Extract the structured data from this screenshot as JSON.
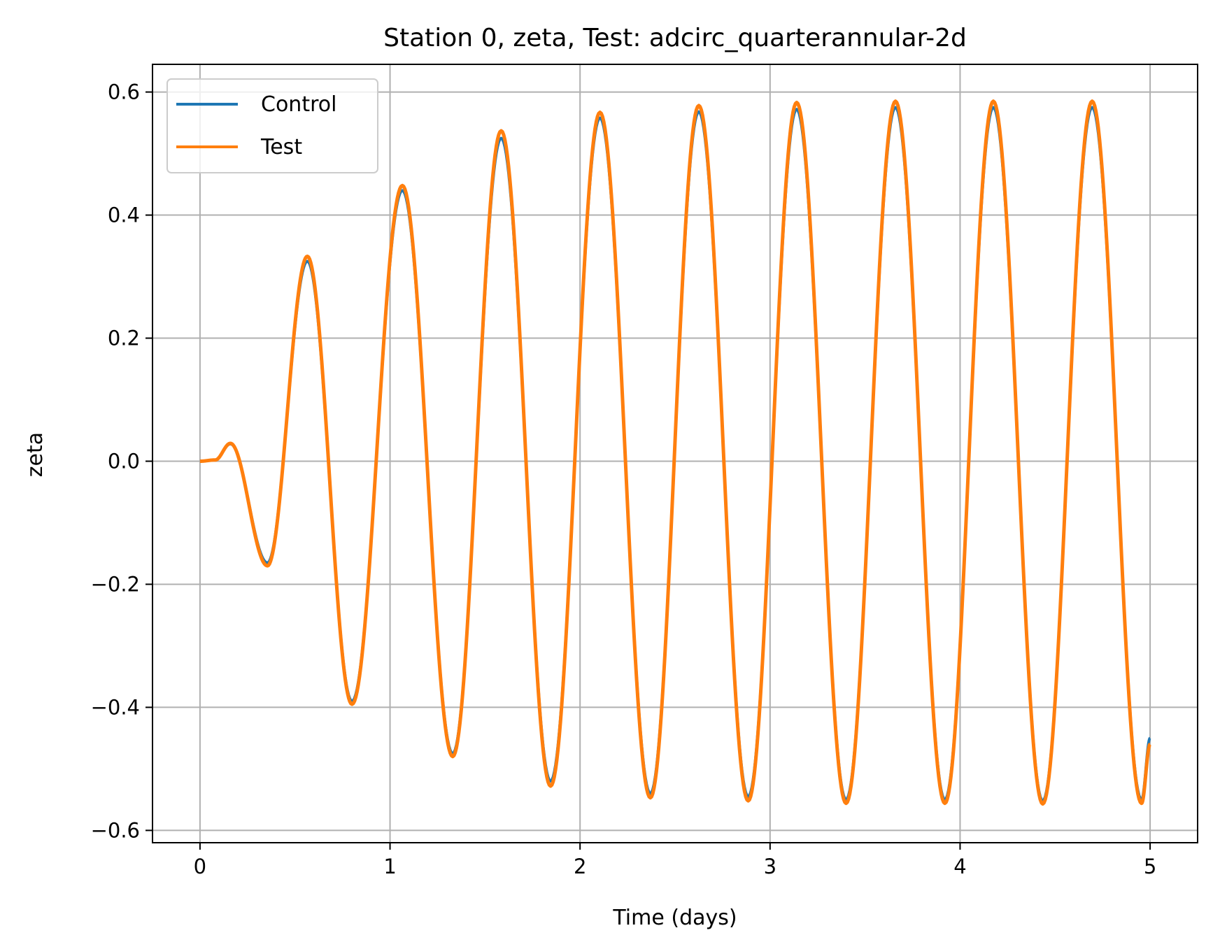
{
  "chart_data": {
    "type": "line",
    "title": "Station 0, zeta, Test: adcirc_quarterannular-2d",
    "xlabel": "Time (days)",
    "ylabel": "zeta",
    "xlim": [
      -0.25,
      5.25
    ],
    "ylim": [
      -0.62,
      0.645
    ],
    "xticks": [
      0,
      1,
      2,
      3,
      4,
      5
    ],
    "xtick_labels": [
      "0",
      "1",
      "2",
      "3",
      "4",
      "5"
    ],
    "yticks": [
      -0.6,
      -0.4,
      -0.2,
      0.0,
      0.2,
      0.4,
      0.6
    ],
    "ytick_labels": [
      "−0.6",
      "−0.4",
      "−0.2",
      "0.0",
      "0.2",
      "0.4",
      "0.6"
    ],
    "grid": true,
    "legend_position": "top-left",
    "series": [
      {
        "name": "Control",
        "color": "#1f77b4",
        "x": [
          0,
          0.08,
          0.16,
          0.355,
          0.565,
          0.8,
          1.065,
          1.33,
          1.585,
          1.845,
          2.105,
          2.37,
          2.625,
          2.885,
          3.14,
          3.4,
          3.66,
          3.92,
          4.175,
          4.435,
          4.695,
          4.955,
          5.0
        ],
        "y": [
          0,
          0.002,
          0.028,
          -0.165,
          0.325,
          -0.39,
          0.44,
          -0.475,
          0.525,
          -0.52,
          0.558,
          -0.54,
          0.568,
          -0.545,
          0.572,
          -0.55,
          0.575,
          -0.55,
          0.575,
          -0.552,
          0.575,
          -0.55,
          -0.45
        ]
      },
      {
        "name": "Test",
        "color": "#ff7f0e",
        "x": [
          0,
          0.08,
          0.16,
          0.355,
          0.565,
          0.8,
          1.065,
          1.33,
          1.585,
          1.845,
          2.105,
          2.37,
          2.625,
          2.885,
          3.14,
          3.4,
          3.66,
          3.92,
          4.175,
          4.435,
          4.695,
          4.955,
          5.0
        ],
        "y": [
          0,
          0.002,
          0.029,
          -0.17,
          0.333,
          -0.395,
          0.448,
          -0.48,
          0.537,
          -0.528,
          0.567,
          -0.547,
          0.578,
          -0.552,
          0.583,
          -0.556,
          0.585,
          -0.556,
          0.585,
          -0.557,
          0.585,
          -0.556,
          -0.46
        ]
      }
    ]
  }
}
